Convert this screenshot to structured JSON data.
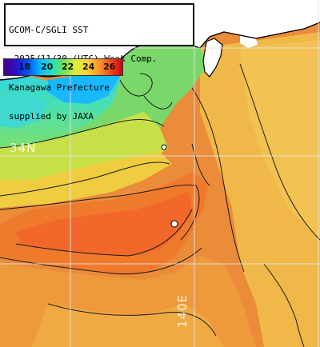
{
  "title": {
    "line1": "GCOM-C/SGLI SST",
    "line2": "~2025/11/30 (UTC) Week Comp.",
    "line3": "Kanagawa Prefecture",
    "line4": "supplied by JAXA"
  },
  "colorbar": {
    "ticks": [
      "18",
      "20",
      "22",
      "24",
      "26"
    ],
    "unit_hint": "",
    "colors": {
      "cold": "#4b0082",
      "cool": "#00b4ff",
      "mid": "#6ee05a",
      "warm": "#ffd238",
      "hot": "#f03c14"
    }
  },
  "grid_labels": {
    "latitude": "34N",
    "longitude": "140E"
  },
  "colors": {
    "land": "#ffffff",
    "coast": "#000000",
    "contour": "#1a1a1a",
    "grid": "#e6e6e6"
  }
}
